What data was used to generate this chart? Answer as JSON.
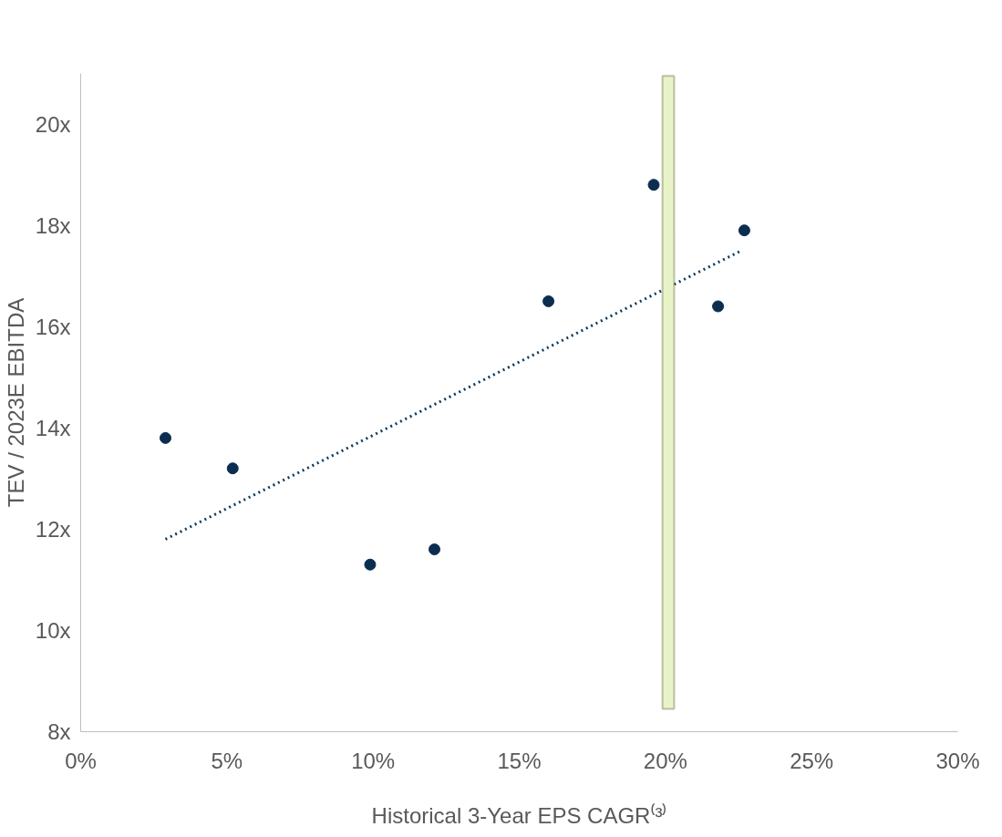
{
  "chart_data": {
    "type": "scatter",
    "xlabel": "Historical 3-Year EPS CAGR⁽³⁾",
    "ylabel": "TEV / 2023E EBITDA",
    "xlim": [
      0,
      30
    ],
    "ylim": [
      8,
      21
    ],
    "xticks": [
      {
        "value": 0,
        "label": "0%"
      },
      {
        "value": 5,
        "label": "5%"
      },
      {
        "value": 10,
        "label": "10%"
      },
      {
        "value": 15,
        "label": "15%"
      },
      {
        "value": 20,
        "label": "20%"
      },
      {
        "value": 25,
        "label": "25%"
      },
      {
        "value": 30,
        "label": "30%"
      }
    ],
    "yticks": [
      {
        "value": 8,
        "label": "8x"
      },
      {
        "value": 10,
        "label": "10x"
      },
      {
        "value": 12,
        "label": "12x"
      },
      {
        "value": 14,
        "label": "14x"
      },
      {
        "value": 16,
        "label": "16x"
      },
      {
        "value": 18,
        "label": "18x"
      },
      {
        "value": 20,
        "label": "20x"
      }
    ],
    "grid": false,
    "series": [
      {
        "marker": "circle",
        "color": "#0b2d4f",
        "x": [
          2.9,
          5.2,
          9.9,
          12.1,
          16.0,
          19.6,
          21.8,
          22.7
        ],
        "values": [
          13.8,
          13.2,
          11.3,
          11.6,
          16.5,
          18.8,
          16.4,
          17.9
        ]
      },
      {
        "type": "line",
        "marker": "none",
        "color": "#0d3a5c",
        "line_style": "dotted",
        "x": [
          2.9,
          22.6
        ],
        "values": [
          11.8,
          17.5
        ]
      }
    ],
    "bands": [
      {
        "axis": "x",
        "from": 19.9,
        "to": 20.3,
        "color": "#e8f4c8"
      }
    ]
  }
}
